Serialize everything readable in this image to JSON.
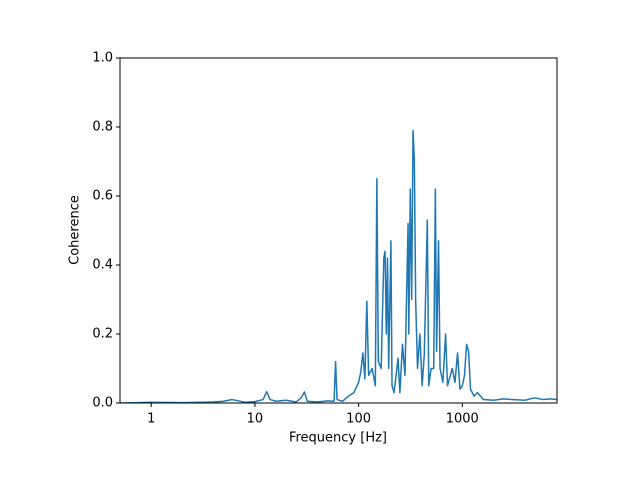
{
  "chart_data": {
    "type": "line",
    "xlabel": "Frequency [Hz]",
    "ylabel": "Coherence",
    "xscale": "log",
    "xlim": [
      0.5,
      8192
    ],
    "ylim": [
      0,
      1
    ],
    "xticks": [
      1,
      10,
      100,
      1000
    ],
    "yticks": [
      {
        "value": 0,
        "label": "0.0"
      },
      0.2,
      0.4,
      0.6,
      0.8,
      {
        "value": 1,
        "label": "1.0"
      }
    ],
    "series": [
      {
        "color": "#1f77b4",
        "x": [
          0.5,
          1,
          2,
          4,
          5,
          6,
          7,
          8,
          10,
          12,
          13,
          14,
          16,
          20,
          25,
          28,
          30,
          32,
          40,
          50,
          58,
          60,
          62,
          70,
          80,
          90,
          100,
          105,
          110,
          115,
          120,
          125,
          135,
          145,
          150,
          155,
          165,
          175,
          180,
          185,
          190,
          195,
          205,
          210,
          220,
          240,
          250,
          265,
          280,
          300,
          305,
          315,
          325,
          335,
          345,
          355,
          370,
          390,
          410,
          430,
          460,
          475,
          500,
          530,
          550,
          565,
          590,
          610,
          650,
          690,
          720,
          800,
          850,
          900,
          950,
          1000,
          1050,
          1100,
          1150,
          1200,
          1300,
          1400,
          1600,
          2000,
          2500,
          3000,
          4000,
          5000,
          6000,
          7000,
          8192
        ],
        "values": [
          0,
          0.002,
          0.001,
          0.003,
          0.005,
          0.01,
          0.006,
          0.002,
          0.004,
          0.01,
          0.033,
          0.01,
          0.005,
          0.008,
          0.003,
          0.015,
          0.032,
          0.005,
          0.003,
          0.006,
          0.005,
          0.12,
          0.01,
          0.005,
          0.02,
          0.03,
          0.06,
          0.09,
          0.145,
          0.07,
          0.295,
          0.08,
          0.1,
          0.05,
          0.65,
          0.12,
          0.1,
          0.42,
          0.44,
          0.2,
          0.42,
          0.1,
          0.47,
          0.05,
          0.03,
          0.13,
          0.03,
          0.17,
          0.08,
          0.52,
          0.2,
          0.62,
          0.3,
          0.79,
          0.7,
          0.3,
          0.1,
          0.2,
          0.05,
          0.14,
          0.53,
          0.05,
          0.1,
          0.1,
          0.62,
          0.15,
          0.47,
          0.1,
          0.06,
          0.2,
          0.05,
          0.1,
          0.06,
          0.145,
          0.04,
          0.05,
          0.08,
          0.17,
          0.15,
          0.04,
          0.02,
          0.03,
          0.01,
          0.008,
          0.012,
          0.01,
          0.008,
          0.015,
          0.01,
          0.012,
          0.01
        ]
      }
    ]
  }
}
